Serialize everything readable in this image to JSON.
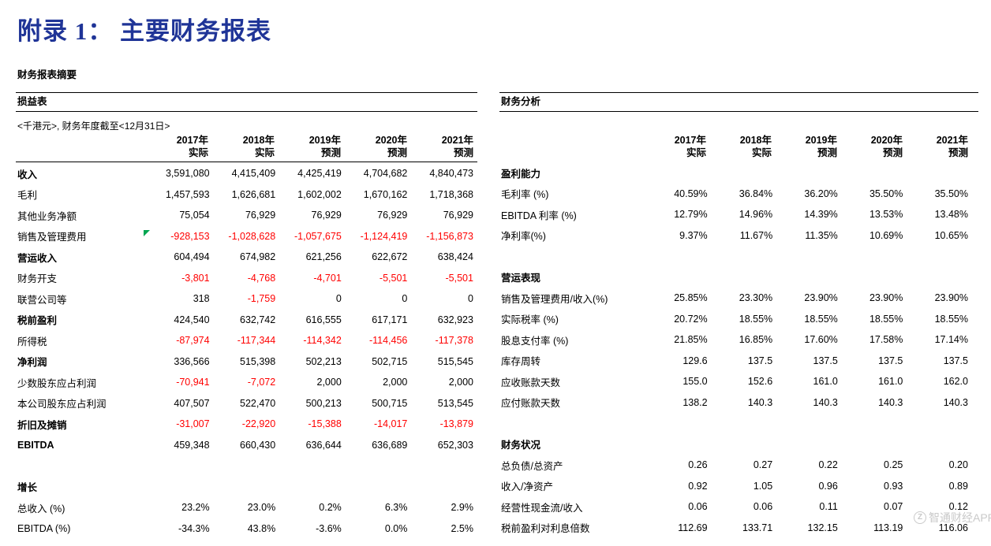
{
  "page": {
    "title": "附录 1： 主要财务报表",
    "subtitle": "财务报表摘要",
    "watermark_logo": "Z",
    "watermark_text": "智通财经APP"
  },
  "colors": {
    "title": "#1f3497",
    "negative": "#ff0000",
    "marker": "#00a651",
    "line": "#000000",
    "watermark": "#c0c0c0"
  },
  "income_statement": {
    "section_title": "损益表",
    "note": "<千港元>, 财务年度截至<12月31日>",
    "col_years": [
      "2017年",
      "2018年",
      "2019年",
      "2020年",
      "2021年"
    ],
    "col_types": [
      "实际",
      "实际",
      "预测",
      "预测",
      "预测"
    ],
    "rows": [
      {
        "label": "收入",
        "bold": true,
        "values": [
          "3,591,080",
          "4,415,409",
          "4,425,419",
          "4,704,682",
          "4,840,473"
        ]
      },
      {
        "label": "毛利",
        "values": [
          "1,457,593",
          "1,626,681",
          "1,602,002",
          "1,670,162",
          "1,718,368"
        ]
      },
      {
        "label": "其他业务净额",
        "values": [
          "75,054",
          "76,929",
          "76,929",
          "76,929",
          "76,929"
        ]
      },
      {
        "label": "销售及管理费用",
        "marker": true,
        "values": [
          "-928,153",
          "-1,028,628",
          "-1,057,675",
          "-1,124,419",
          "-1,156,873"
        ]
      },
      {
        "label": "营运收入",
        "bold": true,
        "values": [
          "604,494",
          "674,982",
          "621,256",
          "622,672",
          "638,424"
        ]
      },
      {
        "label": "财务开支",
        "values": [
          "-3,801",
          "-4,768",
          "-4,701",
          "-5,501",
          "-5,501"
        ]
      },
      {
        "label": "联营公司等",
        "values": [
          "318",
          "-1,759",
          "0",
          "0",
          "0"
        ]
      },
      {
        "label": "税前盈利",
        "bold": true,
        "values": [
          "424,540",
          "632,742",
          "616,555",
          "617,171",
          "632,923"
        ]
      },
      {
        "label": "所得税",
        "values": [
          "-87,974",
          "-117,344",
          "-114,342",
          "-114,456",
          "-117,378"
        ]
      },
      {
        "label": "净利润",
        "bold": true,
        "values": [
          "336,566",
          "515,398",
          "502,213",
          "502,715",
          "515,545"
        ]
      },
      {
        "label": "少数股东应占利润",
        "values": [
          "-70,941",
          "-7,072",
          "2,000",
          "2,000",
          "2,000"
        ]
      },
      {
        "label": "本公司股东应占利润",
        "values": [
          "407,507",
          "522,470",
          "500,213",
          "500,715",
          "513,545"
        ]
      },
      {
        "label": "折旧及摊销",
        "bold": true,
        "values": [
          "-31,007",
          "-22,920",
          "-15,388",
          "-14,017",
          "-13,879"
        ]
      },
      {
        "label": "EBITDA",
        "bold": true,
        "values": [
          "459,348",
          "660,430",
          "636,644",
          "636,689",
          "652,303"
        ]
      },
      {
        "type": "spacer"
      },
      {
        "type": "section",
        "label": "增长"
      },
      {
        "label": "总收入 (%)",
        "redNeg": false,
        "values": [
          "23.2%",
          "23.0%",
          "0.2%",
          "6.3%",
          "2.9%"
        ]
      },
      {
        "label": "EBITDA (%)",
        "redNeg": false,
        "values": [
          "-34.3%",
          "43.8%",
          "-3.6%",
          "0.0%",
          "2.5%"
        ]
      }
    ]
  },
  "financial_analysis": {
    "section_title": "财务分析",
    "col_years": [
      "2017年",
      "2018年",
      "2019年",
      "2020年",
      "2021年"
    ],
    "col_types": [
      "实际",
      "实际",
      "预测",
      "预测",
      "预测"
    ],
    "rows": [
      {
        "type": "section",
        "label": "盈利能力"
      },
      {
        "label": "毛利率 (%)",
        "values": [
          "40.59%",
          "36.84%",
          "36.20%",
          "35.50%",
          "35.50%"
        ]
      },
      {
        "label": "EBITDA 利率 (%)",
        "values": [
          "12.79%",
          "14.96%",
          "14.39%",
          "13.53%",
          "13.48%"
        ]
      },
      {
        "label": "净利率(%)",
        "values": [
          "9.37%",
          "11.67%",
          "11.35%",
          "10.69%",
          "10.65%"
        ]
      },
      {
        "type": "spacer"
      },
      {
        "type": "section",
        "label": "营运表现"
      },
      {
        "label": "销售及管理费用/收入(%)",
        "values": [
          "25.85%",
          "23.30%",
          "23.90%",
          "23.90%",
          "23.90%"
        ]
      },
      {
        "label": "实际税率 (%)",
        "values": [
          "20.72%",
          "18.55%",
          "18.55%",
          "18.55%",
          "18.55%"
        ]
      },
      {
        "label": "股息支付率 (%)",
        "values": [
          "21.85%",
          "16.85%",
          "17.60%",
          "17.58%",
          "17.14%"
        ]
      },
      {
        "label": "库存周转",
        "values": [
          "129.6",
          "137.5",
          "137.5",
          "137.5",
          "137.5"
        ]
      },
      {
        "label": "应收账款天数",
        "values": [
          "155.0",
          "152.6",
          "161.0",
          "161.0",
          "162.0"
        ]
      },
      {
        "label": "应付账款天数",
        "values": [
          "138.2",
          "140.3",
          "140.3",
          "140.3",
          "140.3"
        ]
      },
      {
        "type": "spacer"
      },
      {
        "type": "section",
        "label": "财务状况"
      },
      {
        "label": "总负债/总资产",
        "values": [
          "0.26",
          "0.27",
          "0.22",
          "0.25",
          "0.20"
        ]
      },
      {
        "label": "收入/净资产",
        "values": [
          "0.92",
          "1.05",
          "0.96",
          "0.93",
          "0.89"
        ]
      },
      {
        "label": "经营性现金流/收入",
        "values": [
          "0.06",
          "0.06",
          "0.11",
          "0.07",
          "0.12"
        ]
      },
      {
        "label": "税前盈利对利息倍数",
        "values": [
          "112.69",
          "133.71",
          "132.15",
          "113.19",
          "116.06"
        ]
      }
    ]
  }
}
